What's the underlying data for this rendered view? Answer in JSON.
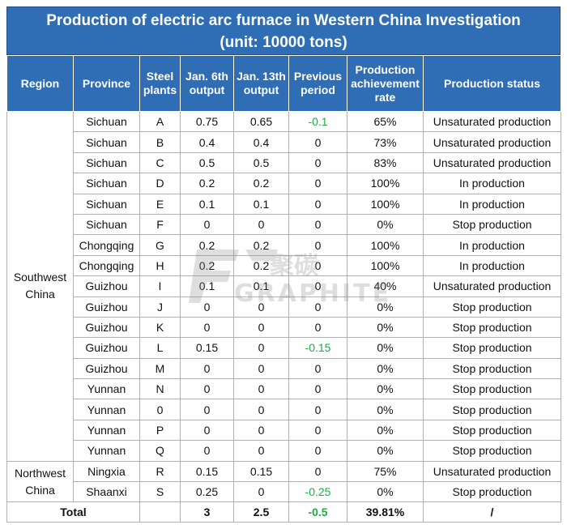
{
  "title_line1": "Production of electric arc furnace in Western China Investigation",
  "title_line2": "(unit: 10000 tons)",
  "headers": {
    "region": "Region",
    "province": "Province",
    "plants_1": "Steel",
    "plants_2": "plants",
    "jan6_1": "Jan. 6th",
    "jan6_2": "output",
    "jan13_1": "Jan. 13th",
    "jan13_2": "output",
    "prev_1": "Previous",
    "prev_2": "period",
    "rate_1": "Production",
    "rate_2": "achievement",
    "rate_3": "rate",
    "status": "Production status"
  },
  "regions": {
    "southwest_1": "Southwest",
    "southwest_2": "China",
    "northwest_1": "Northwest",
    "northwest_2": "China"
  },
  "rows": [
    {
      "province": "Sichuan",
      "plant": "A",
      "jan6": "0.75",
      "jan13": "0.65",
      "prev": "-0.1",
      "rate": "65%",
      "status": "Unsaturated production"
    },
    {
      "province": "Sichuan",
      "plant": "B",
      "jan6": "0.4",
      "jan13": "0.4",
      "prev": "0",
      "rate": "73%",
      "status": "Unsaturated production"
    },
    {
      "province": "Sichuan",
      "plant": "C",
      "jan6": "0.5",
      "jan13": "0.5",
      "prev": "0",
      "rate": "83%",
      "status": "Unsaturated production"
    },
    {
      "province": "Sichuan",
      "plant": "D",
      "jan6": "0.2",
      "jan13": "0.2",
      "prev": "0",
      "rate": "100%",
      "status": "In production"
    },
    {
      "province": "Sichuan",
      "plant": "E",
      "jan6": "0.1",
      "jan13": "0.1",
      "prev": "0",
      "rate": "100%",
      "status": "In production"
    },
    {
      "province": "Sichuan",
      "plant": "F",
      "jan6": "0",
      "jan13": "0",
      "prev": "0",
      "rate": "0%",
      "status": "Stop production"
    },
    {
      "province": "Chongqing",
      "plant": "G",
      "jan6": "0.2",
      "jan13": "0.2",
      "prev": "0",
      "rate": "100%",
      "status": "In production"
    },
    {
      "province": "Chongqing",
      "plant": "H",
      "jan6": "0.2",
      "jan13": "0.2",
      "prev": "0",
      "rate": "100%",
      "status": "In production"
    },
    {
      "province": "Guizhou",
      "plant": "I",
      "jan6": "0.1",
      "jan13": "0.1",
      "prev": "0",
      "rate": "40%",
      "status": "Unsaturated production"
    },
    {
      "province": "Guizhou",
      "plant": "J",
      "jan6": "0",
      "jan13": "0",
      "prev": "0",
      "rate": "0%",
      "status": "Stop production"
    },
    {
      "province": "Guizhou",
      "plant": "K",
      "jan6": "0",
      "jan13": "0",
      "prev": "0",
      "rate": "0%",
      "status": "Stop production"
    },
    {
      "province": "Guizhou",
      "plant": "L",
      "jan6": "0.15",
      "jan13": "0",
      "prev": "-0.15",
      "rate": "0%",
      "status": "Stop production"
    },
    {
      "province": "Guizhou",
      "plant": "M",
      "jan6": "0",
      "jan13": "0",
      "prev": "0",
      "rate": "0%",
      "status": "Stop production"
    },
    {
      "province": "Yunnan",
      "plant": "N",
      "jan6": "0",
      "jan13": "0",
      "prev": "0",
      "rate": "0%",
      "status": "Stop production"
    },
    {
      "province": "Yunnan",
      "plant": "0",
      "jan6": "0",
      "jan13": "0",
      "prev": "0",
      "rate": "0%",
      "status": "Stop production"
    },
    {
      "province": "Yunnan",
      "plant": "P",
      "jan6": "0",
      "jan13": "0",
      "prev": "0",
      "rate": "0%",
      "status": "Stop production"
    },
    {
      "province": "Yunnan",
      "plant": "Q",
      "jan6": "0",
      "jan13": "0",
      "prev": "0",
      "rate": "0%",
      "status": "Stop production"
    },
    {
      "province": "Ningxia",
      "plant": "R",
      "jan6": "0.15",
      "jan13": "0.15",
      "prev": "0",
      "rate": "75%",
      "status": "Unsaturated production"
    },
    {
      "province": "Shaanxi",
      "plant": "S",
      "jan6": "0.25",
      "jan13": "0",
      "prev": "-0.25",
      "rate": "0%",
      "status": "Stop production"
    }
  ],
  "total": {
    "label": "Total",
    "jan6": "3",
    "jan13": "2.5",
    "prev": "-0.5",
    "rate": "39.81%",
    "status": "/"
  },
  "watermark": {
    "text": "GRAPHITE",
    "brand_chars": "聚碳"
  },
  "colors": {
    "header_bg": "#2f6db5",
    "negative": "#22aa44"
  }
}
